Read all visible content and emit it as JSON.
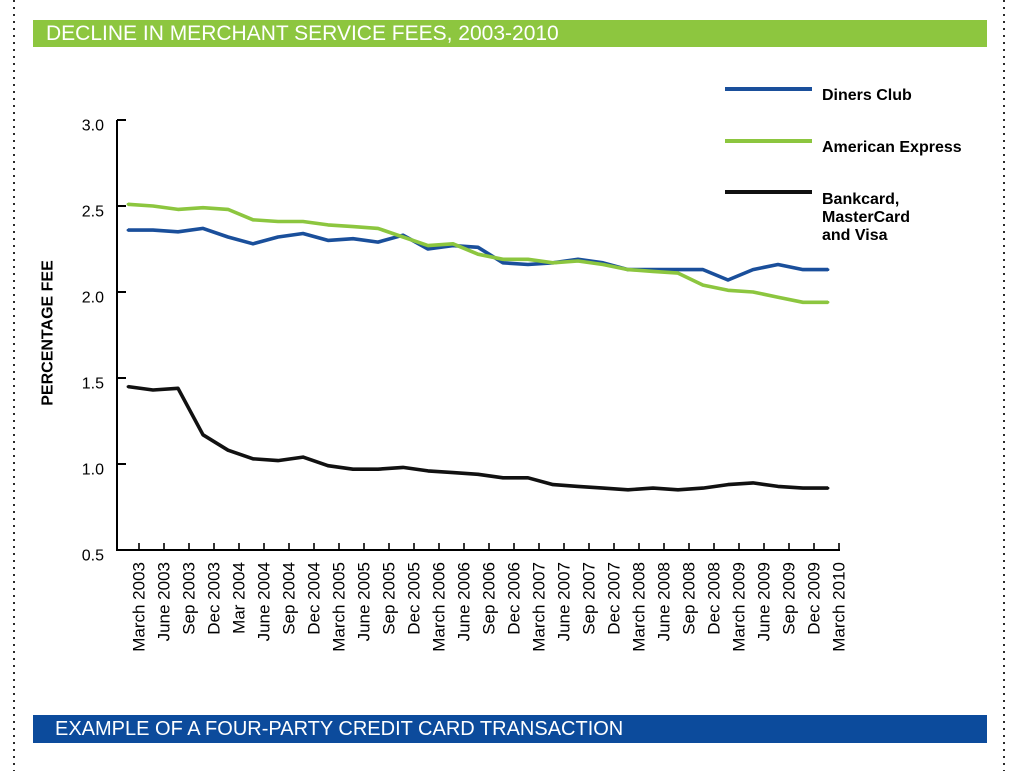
{
  "colors": {
    "header_bar": "#8dc63f",
    "footer_bar": "#0c4b9c"
  },
  "footer_bar": {
    "title": "EXAMPLE OF A FOUR-PARTY CREDIT CARD TRANSACTION"
  },
  "chart_data": {
    "type": "line",
    "title": "DECLINE IN MERCHANT SERVICE FEES, 2003-2010",
    "ylabel": "PERCENTAGE FEE",
    "ylim": [
      0.5,
      3.0
    ],
    "ytick_labels": [
      "0.5",
      "1.0",
      "1.5",
      "2.0",
      "2.5",
      "3.0"
    ],
    "grid": false,
    "legend": "top-right",
    "categories": [
      "March 2003",
      "June 2003",
      "Sep 2003",
      "Dec 2003",
      "Mar 2004",
      "June 2004",
      "Sep 2004",
      "Dec 2004",
      "March 2005",
      "June 2005",
      "Sep 2005",
      "Dec 2005",
      "March 2006",
      "June 2006",
      "Sep 2006",
      "Dec 2006",
      "March 2007",
      "June 2007",
      "Sep 2007",
      "Dec 2007",
      "March 2008",
      "June 2008",
      "Sep 2008",
      "Dec 2008",
      "March 2009",
      "June 2009",
      "Sep 2009",
      "Dec 2009",
      "March 2010"
    ],
    "series": [
      {
        "name": "Diners Club",
        "color": "#1a4f9b",
        "values": [
          2.36,
          2.36,
          2.35,
          2.37,
          2.32,
          2.28,
          2.32,
          2.34,
          2.3,
          2.31,
          2.29,
          2.33,
          2.25,
          2.27,
          2.26,
          2.17,
          2.16,
          2.17,
          2.19,
          2.17,
          2.13,
          2.13,
          2.13,
          2.13,
          2.07,
          2.13,
          2.16,
          2.13,
          2.13
        ]
      },
      {
        "name": "American Express",
        "color": "#8cc63f",
        "values": [
          2.51,
          2.5,
          2.48,
          2.49,
          2.48,
          2.42,
          2.41,
          2.41,
          2.39,
          2.38,
          2.37,
          2.32,
          2.27,
          2.28,
          2.22,
          2.19,
          2.19,
          2.17,
          2.18,
          2.16,
          2.13,
          2.12,
          2.11,
          2.04,
          2.01,
          2.0,
          1.97,
          1.94,
          1.94
        ]
      },
      {
        "name": "Bankcard, MasterCard and Visa",
        "color": "#111111",
        "values": [
          1.45,
          1.43,
          1.44,
          1.17,
          1.08,
          1.03,
          1.02,
          1.04,
          0.99,
          0.97,
          0.97,
          0.98,
          0.96,
          0.95,
          0.94,
          0.92,
          0.92,
          0.88,
          0.87,
          0.86,
          0.85,
          0.86,
          0.85,
          0.86,
          0.88,
          0.89,
          0.87,
          0.86,
          0.86
        ]
      }
    ]
  }
}
